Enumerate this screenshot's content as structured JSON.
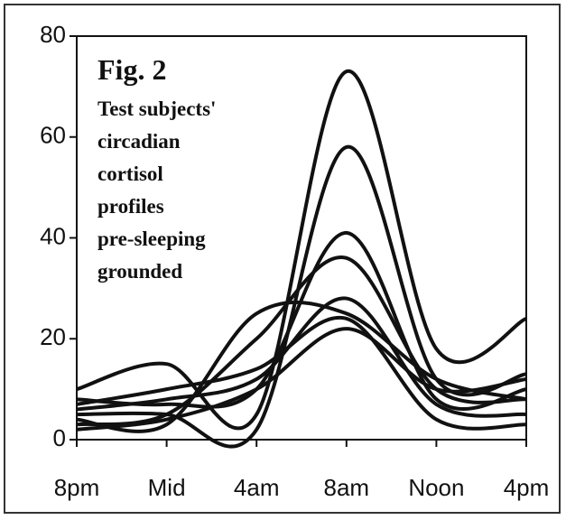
{
  "chart_data": {
    "type": "line",
    "title": "Fig. 2",
    "annotation": [
      "Test subjects'",
      "circadian",
      "cortisol",
      "profiles",
      "pre-sleeping",
      "grounded"
    ],
    "categories": [
      "8pm",
      "Mid",
      "4am",
      "8am",
      "Noon",
      "4pm"
    ],
    "series": [
      {
        "color": "#111111",
        "values": [
          10,
          15,
          5,
          73,
          18,
          24
        ]
      },
      {
        "color": "#111111",
        "values": [
          5,
          5,
          2,
          58,
          12,
          13
        ]
      },
      {
        "color": "#111111",
        "values": [
          8,
          7,
          10,
          41,
          8,
          10
        ]
      },
      {
        "color": "#111111",
        "values": [
          3,
          5,
          20,
          36,
          10,
          8
        ]
      },
      {
        "color": "#111111",
        "values": [
          6,
          8,
          12,
          28,
          7,
          5
        ]
      },
      {
        "color": "#111111",
        "values": [
          4,
          3,
          25,
          25,
          12,
          8
        ]
      },
      {
        "color": "#111111",
        "values": [
          7,
          10,
          14,
          24,
          4,
          3
        ]
      },
      {
        "color": "#111111",
        "values": [
          2,
          4,
          10,
          22,
          10,
          12
        ]
      }
    ],
    "ylim": [
      0,
      80
    ],
    "yticks": [
      0,
      20,
      40,
      60,
      80
    ],
    "grid": false
  }
}
